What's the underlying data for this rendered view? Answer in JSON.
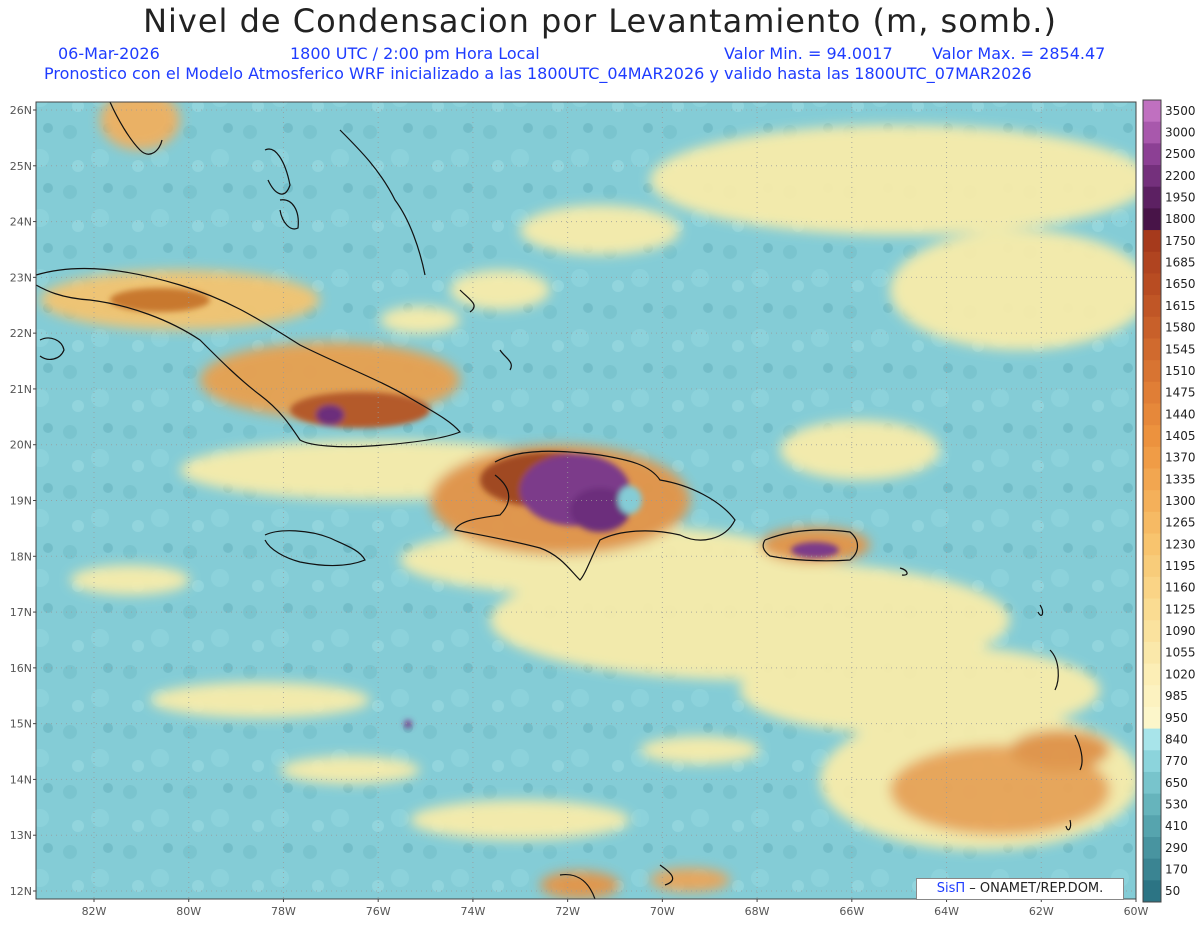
{
  "title": "Nivel de Condensacion por Levantamiento (m, somb.)",
  "subtitle": {
    "date": "06-Mar-2026",
    "time": "1800 UTC / 2:00 pm Hora Local",
    "min": "Valor Min. = 94.0017",
    "max": "Valor Max. = 2854.47",
    "forecast": "Pronostico con el Modelo Atmosferico WRF inicializado a las 1800UTC_04MAR2026 y valido hasta las  1800UTC_07MAR2026"
  },
  "axes": {
    "lat": [
      "26N",
      "25N",
      "24N",
      "23N",
      "22N",
      "21N",
      "20N",
      "19N",
      "18N",
      "17N",
      "16N",
      "15N",
      "14N",
      "13N",
      "12N"
    ],
    "lon": [
      "82W",
      "80W",
      "78W",
      "76W",
      "74W",
      "72W",
      "70W",
      "68W",
      "66W",
      "64W",
      "62W",
      "60W"
    ]
  },
  "colorbar": {
    "labels": [
      "3500",
      "3000",
      "2500",
      "2200",
      "1950",
      "1800",
      "1750",
      "1685",
      "1650",
      "1615",
      "1580",
      "1545",
      "1510",
      "1475",
      "1440",
      "1405",
      "1370",
      "1335",
      "1300",
      "1265",
      "1230",
      "1195",
      "1160",
      "1125",
      "1090",
      "1055",
      "1020",
      "985",
      "950",
      "840",
      "770",
      "650",
      "530",
      "410",
      "290",
      "170",
      "50"
    ],
    "colors": [
      "#c070c0",
      "#a858ac",
      "#8c4094",
      "#74307c",
      "#5c2062",
      "#481448",
      "#a63a1c",
      "#b04420",
      "#b84c22",
      "#c05626",
      "#c8602a",
      "#d06a2e",
      "#d87432",
      "#e07e36",
      "#e6883a",
      "#ec923e",
      "#f09c46",
      "#f2a650",
      "#f4b05a",
      "#f6ba64",
      "#f8c46e",
      "#f8cc7a",
      "#faD486",
      "#fadc92",
      "#fae29e",
      "#fae8aa",
      "#fceeb6",
      "#fcf2c0",
      "#fcf6ca",
      "#a8e4ea",
      "#8cd4dc",
      "#78c4cc",
      "#66b4bc",
      "#56a4ae",
      "#4894a0",
      "#3a8492",
      "#2c7484"
    ]
  },
  "credit": {
    "brand": "SisΠ",
    "org": " – ONAMET/REP.DOM."
  },
  "colors": {
    "sea": "#82ccd6",
    "land_hot": "#a04020",
    "land_peak": "#7a3a8a",
    "warm": "#f8e8a0"
  }
}
